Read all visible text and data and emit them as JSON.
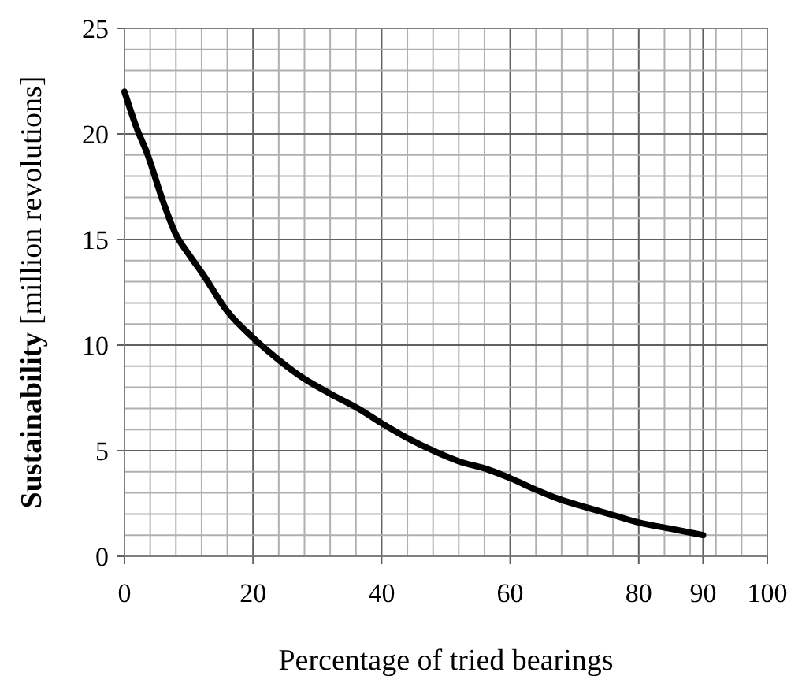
{
  "chart_data": {
    "type": "line",
    "xlabel": "Percentage of tried bearings",
    "ylabel": "Sustainability [million revolutions]",
    "series": [
      {
        "color": "#000000",
        "x": [
          0,
          2,
          3.5,
          6,
          7.9,
          10,
          12.1,
          16,
          20,
          24,
          28,
          32,
          36.9,
          40,
          44,
          48.4,
          52,
          56.6,
          60,
          64,
          67.7,
          72,
          76,
          80,
          85,
          90
        ],
        "values": [
          22,
          20.2,
          19.1,
          16.8,
          15.3,
          14.3,
          13.4,
          11.6,
          10.35,
          9.3,
          8.4,
          7.7,
          6.9,
          6.3,
          5.6,
          4.95,
          4.5,
          4.1,
          3.7,
          3.15,
          2.7,
          2.3,
          1.95,
          1.6,
          1.3,
          1.0
        ]
      }
    ],
    "xlim": [
      0,
      100
    ],
    "ylim": [
      0,
      25
    ],
    "xticks": [
      0,
      {
        "value": 4,
        "label": null
      },
      {
        "value": 8,
        "label": null
      },
      {
        "value": 12,
        "label": null
      },
      {
        "value": 16,
        "label": null
      },
      20,
      {
        "value": 24,
        "label": null
      },
      {
        "value": 28,
        "label": null
      },
      {
        "value": 32,
        "label": null
      },
      {
        "value": 36,
        "label": null
      },
      40,
      {
        "value": 44,
        "label": null
      },
      {
        "value": 48,
        "label": null
      },
      {
        "value": 52,
        "label": null
      },
      {
        "value": 56,
        "label": null
      },
      60,
      {
        "value": 64,
        "label": null
      },
      {
        "value": 68,
        "label": null
      },
      {
        "value": 72,
        "label": null
      },
      {
        "value": 76,
        "label": null
      },
      80,
      {
        "value": 84,
        "label": null
      },
      {
        "value": 88,
        "label": null
      },
      90,
      {
        "value": 92,
        "label": null
      },
      {
        "value": 96,
        "label": null
      },
      100
    ],
    "yticks": [
      0,
      {
        "value": 1,
        "label": null
      },
      {
        "value": 2,
        "label": null
      },
      {
        "value": 3,
        "label": null
      },
      {
        "value": 4,
        "label": null
      },
      5,
      {
        "value": 6,
        "label": null
      },
      {
        "value": 7,
        "label": null
      },
      {
        "value": 8,
        "label": null
      },
      {
        "value": 9,
        "label": null
      },
      10,
      {
        "value": 11,
        "label": null
      },
      {
        "value": 12,
        "label": null
      },
      {
        "value": 13,
        "label": null
      },
      {
        "value": 14,
        "label": null
      },
      15,
      {
        "value": 16,
        "label": null
      },
      {
        "value": 17,
        "label": null
      },
      {
        "value": 18,
        "label": null
      },
      {
        "value": 19,
        "label": null
      },
      20,
      {
        "value": 21,
        "label": null
      },
      {
        "value": 22,
        "label": null
      },
      {
        "value": 23,
        "label": null
      },
      {
        "value": 24,
        "label": null
      },
      25
    ],
    "grid": true,
    "marker": "none",
    "line_style": "solid"
  }
}
